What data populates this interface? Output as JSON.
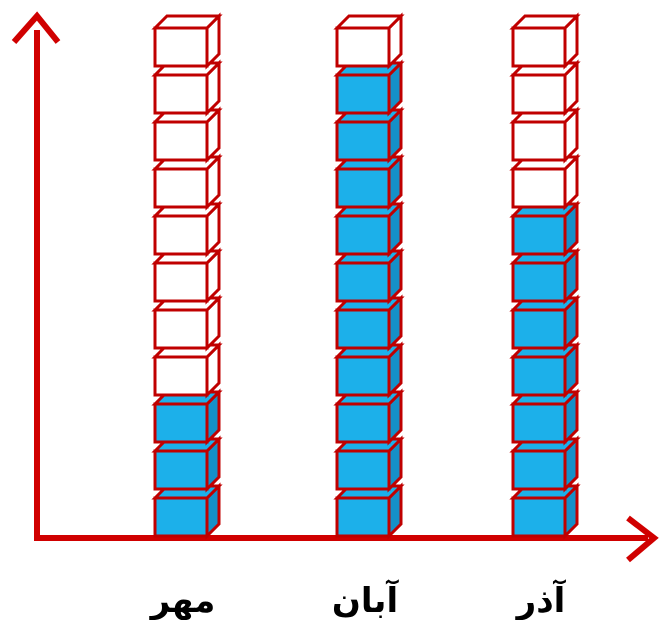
{
  "chart_data": {
    "type": "bar",
    "style": "stacked unit cubes",
    "categories": [
      "مهر",
      "آبان",
      "آذر"
    ],
    "values": [
      3,
      10,
      7
    ],
    "capacity": 11,
    "title": "",
    "xlabel": "",
    "ylabel": "",
    "grid": false,
    "legend": "none"
  },
  "colors": {
    "axis": "#d00000",
    "cube_edge": "#c00000",
    "filled_front": "#1cb0ea",
    "filled_side": "#1590c8",
    "empty": "#ffffff"
  }
}
